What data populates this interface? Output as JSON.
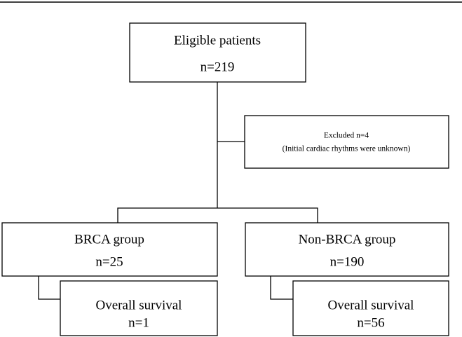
{
  "nodes": [
    {
      "label": "Eligible patients",
      "count": "n=219"
    },
    {
      "label": "Excluded n=4",
      "count": "(Initial cardiac rhythms were unknown)"
    },
    {
      "label": "BRCA group",
      "count": "n=25"
    },
    {
      "label": "Non-BRCA group",
      "count": "n=190"
    },
    {
      "label": "Overall survival",
      "count": "n=1"
    },
    {
      "label": "Overall survival",
      "count": "n=56"
    }
  ]
}
